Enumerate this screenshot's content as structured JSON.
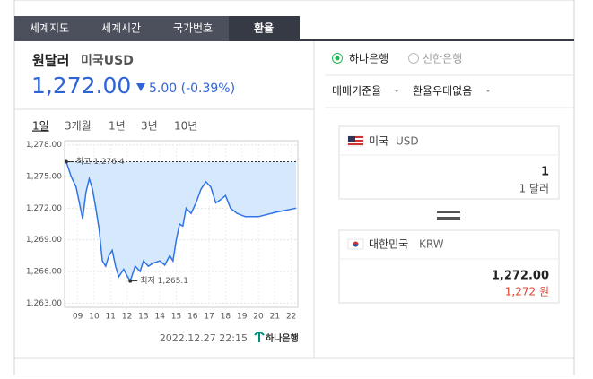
{
  "tabs": [
    "세계지도",
    "세계시간",
    "국가번호",
    "환율"
  ],
  "header": {
    "title": "원달러",
    "currency": "미국USD",
    "price": "1,272.00",
    "change": "5.00 (-0.39%)"
  },
  "periods": [
    "1일",
    "3개월",
    "1년",
    "3년",
    "10년"
  ],
  "banks": [
    "하나은행",
    "신한은행"
  ],
  "options": [
    "매매기준율",
    "환율우대없음"
  ],
  "converter": {
    "from": {
      "country": "미국",
      "code": "USD",
      "amount": "1",
      "amount_text": "1 달러"
    },
    "to": {
      "country": "대한민국",
      "code": "KRW",
      "amount": "1,272.00",
      "amount_text": "1,272 원"
    }
  },
  "footer": {
    "timestamp": "2022.12.27 22:15",
    "logo": "하나은행"
  },
  "chart_data": {
    "type": "line",
    "x": [
      8.3,
      8.6,
      8.9,
      9.1,
      9.3,
      9.5,
      9.7,
      9.9,
      10.1,
      10.3,
      10.5,
      10.7,
      10.9,
      11.1,
      11.3,
      11.5,
      11.8,
      12.0,
      12.2,
      12.5,
      12.8,
      13.0,
      13.3,
      13.6,
      14.0,
      14.3,
      14.6,
      14.8,
      15.0,
      15.2,
      15.4,
      15.6,
      15.9,
      16.2,
      16.5,
      16.8,
      17.1,
      17.4,
      17.7,
      18.0,
      18.3,
      18.7,
      19.2,
      20.0,
      21.0,
      22.3
    ],
    "series": [
      {
        "color": "#2f74e6",
        "values": [
          1276.4,
          1275.0,
          1274.0,
          1272.5,
          1271.0,
          1273.5,
          1274.8,
          1273.8,
          1272.0,
          1270.0,
          1267.0,
          1266.5,
          1267.5,
          1268.0,
          1266.5,
          1265.5,
          1266.2,
          1265.6,
          1265.1,
          1266.5,
          1266.0,
          1267.0,
          1266.5,
          1266.8,
          1267.0,
          1266.6,
          1267.5,
          1267.0,
          1269.0,
          1270.5,
          1270.3,
          1272.0,
          1271.5,
          1272.5,
          1273.8,
          1274.5,
          1274.0,
          1272.5,
          1272.8,
          1273.2,
          1272.0,
          1271.5,
          1271.2,
          1271.2,
          1271.6,
          1272.0
        ]
      }
    ],
    "xlim": [
      8.2,
      22.4
    ],
    "ylim": [
      1262.6,
      1278.4
    ],
    "xticks": [
      {
        "value": 9,
        "label": "09"
      },
      10,
      11,
      12,
      13,
      14,
      15,
      16,
      17,
      18,
      19,
      20,
      21,
      22
    ],
    "yticks": [
      {
        "value": 1263,
        "label": "1,263.00"
      },
      {
        "value": 1266,
        "label": "1,266.00"
      },
      {
        "value": 1269,
        "label": "1,269.00"
      },
      {
        "value": 1272,
        "label": "1,272.00"
      },
      {
        "value": 1275,
        "label": "1,275.00"
      },
      {
        "value": 1278,
        "label": "1,278.00"
      }
    ],
    "grid": true,
    "annotations": [
      {
        "text": "최고 1,276.4",
        "x": 8.3,
        "y": 1276.4
      },
      {
        "text": "최저 1,265.1",
        "x": 12.2,
        "y": 1265.1
      }
    ]
  }
}
